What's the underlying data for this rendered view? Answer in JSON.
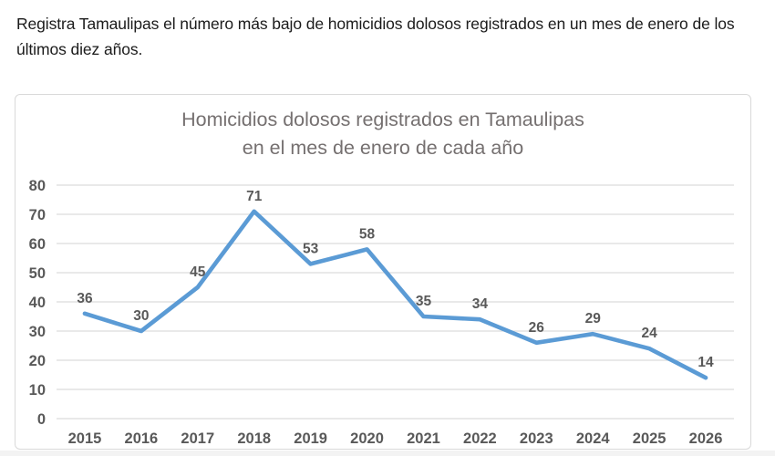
{
  "page": {
    "intro_text": "Registra Tamaulipas el número más bajo de homicidios dolosos registrados en un mes de enero de los últimos diez años."
  },
  "chart": {
    "title_line1": "Homicidios dolosos registrados en Tamaulipas",
    "title_line2": "en el mes de enero de cada año"
  },
  "chart_data": {
    "type": "line",
    "title": "Homicidios dolosos registrados en Tamaulipas en el mes de enero de cada año",
    "categories": [
      "2015",
      "2016",
      "2017",
      "2018",
      "2019",
      "2020",
      "2021",
      "2022",
      "2023",
      "2024",
      "2025",
      "2026"
    ],
    "values": [
      36,
      30,
      45,
      71,
      53,
      58,
      35,
      34,
      26,
      29,
      24,
      14
    ],
    "xlabel": "",
    "ylabel": "",
    "ylim": [
      0,
      80
    ],
    "ytick_step": 10,
    "grid": true,
    "legend": false,
    "colors": {
      "line": "#5b9bd5",
      "labels": "#595959",
      "gridlines": "#dcdcdc",
      "title": "#757070",
      "panel_border": "#d9d9d9"
    }
  }
}
